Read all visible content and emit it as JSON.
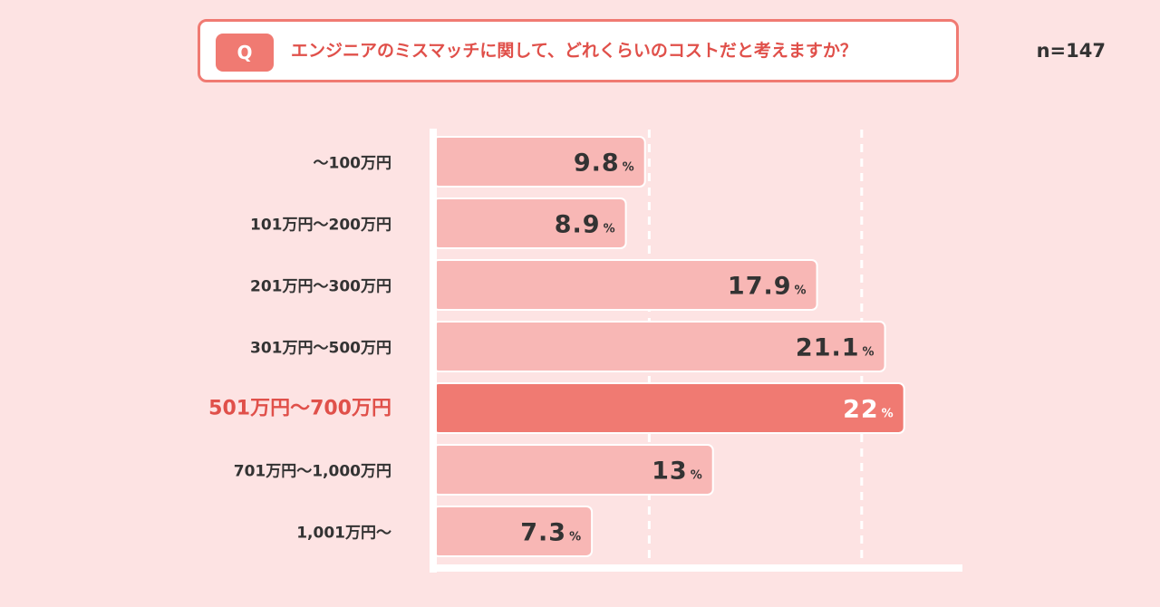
{
  "question": {
    "badge": "Q",
    "text": "エンジニアのミスマッチに関して、どれくらいのコストだと考えますか？"
  },
  "sample": "n=147",
  "colors": {
    "bar": "#f8b7b5",
    "highlight_bar": "#f07a72",
    "highlight_label": "#e0504a",
    "text": "#333333",
    "axis": "#ffffff",
    "background": "#fde3e3"
  },
  "chart_data": {
    "type": "bar",
    "orientation": "horizontal",
    "categories": [
      "〜100万円",
      "101万円〜200万円",
      "201万円〜300万円",
      "301万円〜500万円",
      "501万円〜700万円",
      "701万円〜1,000万円",
      "1,001万円〜"
    ],
    "values": [
      9.8,
      8.9,
      17.9,
      21.1,
      22,
      13,
      7.3
    ],
    "value_labels": [
      "9.8",
      "8.9",
      "17.9",
      "21.1",
      "22",
      "13",
      "7.3"
    ],
    "unit": "%",
    "highlight_index": 4,
    "xlim": [
      0,
      25
    ],
    "gridlines": [
      10,
      20
    ],
    "grid": true,
    "xlabel": "",
    "ylabel": ""
  }
}
